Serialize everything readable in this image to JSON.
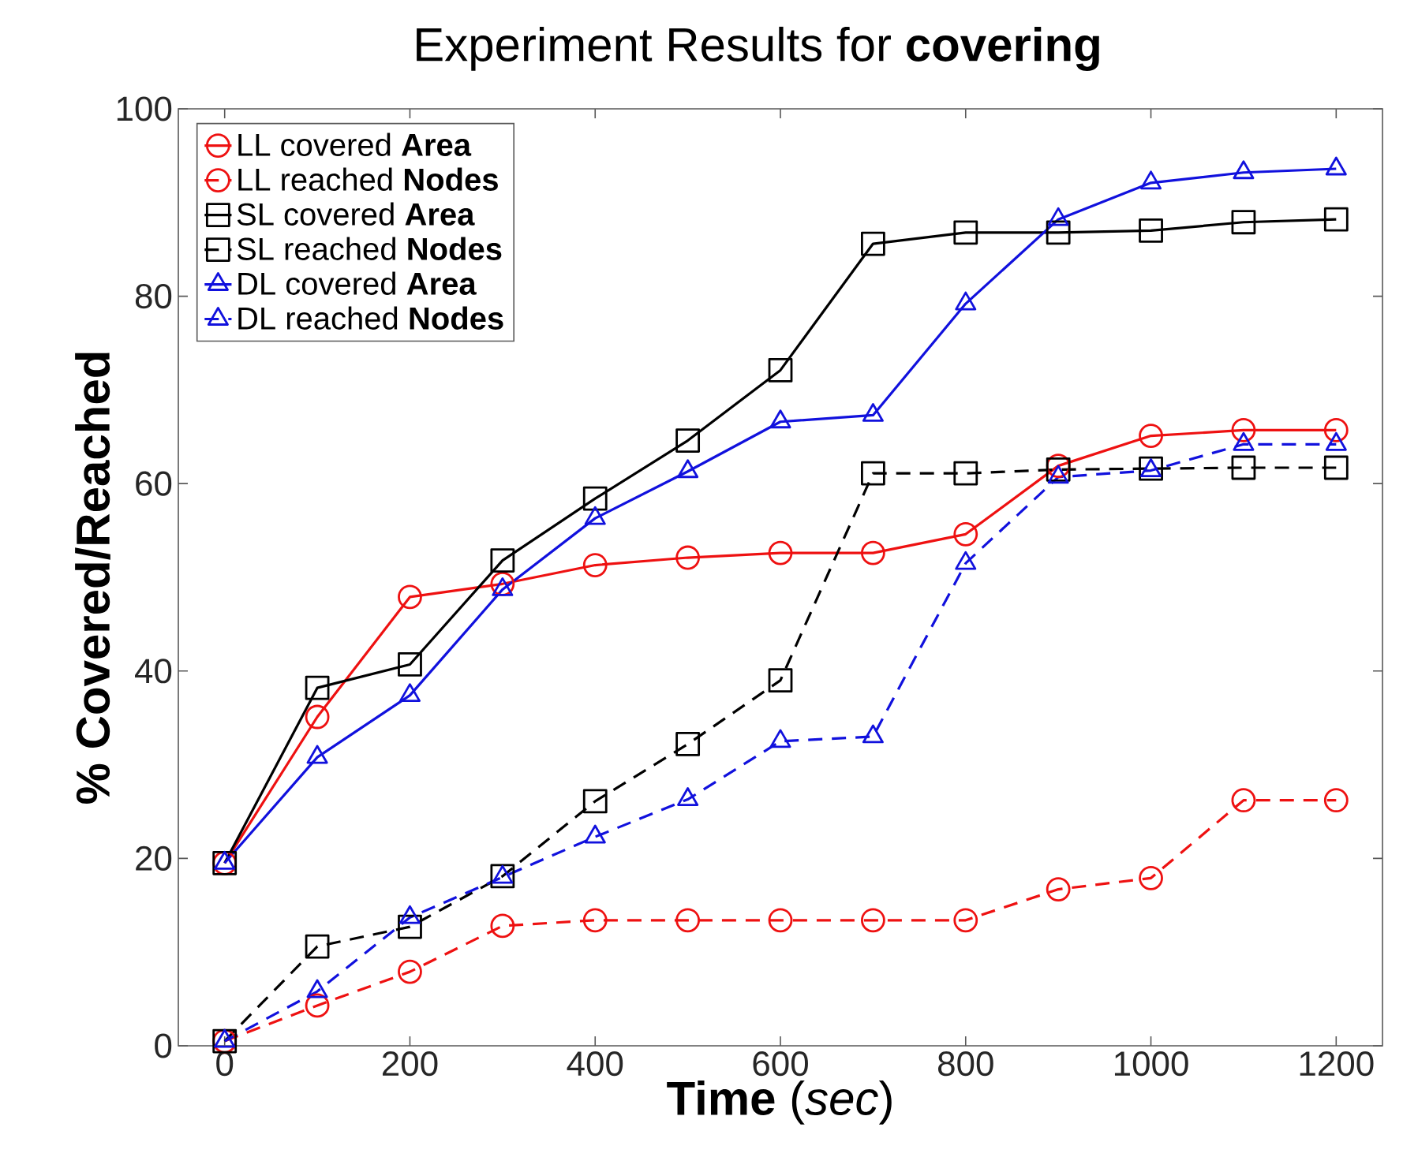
{
  "chart_data": {
    "type": "line",
    "title": "Experiment Results for  **covering**",
    "xlabel": "**Time** (*sec*)",
    "ylabel": "% Covered/Reached",
    "x": [
      0,
      100,
      200,
      300,
      400,
      500,
      600,
      700,
      800,
      900,
      1000,
      1100,
      1200
    ],
    "xlim": [
      -50,
      1250
    ],
    "xticks": [
      0,
      200,
      400,
      600,
      800,
      1000,
      1200
    ],
    "ylim": [
      0,
      100
    ],
    "yticks": [
      0,
      20,
      40,
      60,
      80,
      100
    ],
    "grid": false,
    "legend": "top left",
    "series": [
      {
        "name": "LL covered **Area**",
        "color": "#ee1111",
        "marker": "circle",
        "line_style": "solid",
        "values": [
          19.5,
          35.1,
          47.9,
          49.3,
          51.3,
          52.1,
          52.6,
          52.6,
          54.6,
          61.9,
          65.1,
          65.7,
          65.7
        ]
      },
      {
        "name": "LL reached **Nodes**",
        "color": "#ee1111",
        "marker": "circle",
        "line_style": "dashed",
        "values": [
          0.5,
          4.3,
          7.9,
          12.8,
          13.4,
          13.4,
          13.4,
          13.4,
          13.4,
          16.7,
          17.9,
          26.2,
          26.2
        ]
      },
      {
        "name": "SL covered **Area**",
        "color": "#000000",
        "marker": "square",
        "line_style": "solid",
        "values": [
          19.5,
          38.2,
          40.7,
          51.8,
          58.4,
          64.6,
          72.1,
          85.6,
          86.8,
          86.8,
          87.0,
          87.9,
          88.2
        ]
      },
      {
        "name": "SL reached **Nodes**",
        "color": "#000000",
        "marker": "square",
        "line_style": "dashed",
        "values": [
          0.5,
          10.6,
          12.7,
          18.1,
          26.1,
          32.2,
          39.0,
          61.1,
          61.1,
          61.5,
          61.6,
          61.7,
          61.7
        ]
      },
      {
        "name": "DL covered **Area**",
        "color": "#1111dd",
        "marker": "triangle",
        "line_style": "solid",
        "values": [
          19.5,
          30.8,
          37.4,
          48.7,
          56.3,
          61.3,
          66.6,
          67.3,
          79.2,
          88.2,
          92.1,
          93.2,
          93.6
        ]
      },
      {
        "name": "DL reached **Nodes**",
        "color": "#1111dd",
        "marker": "triangle",
        "line_style": "dashed",
        "values": [
          0.5,
          5.8,
          13.7,
          18.0,
          22.3,
          26.3,
          32.5,
          33.0,
          51.5,
          60.7,
          61.4,
          64.2,
          64.2
        ]
      }
    ]
  }
}
